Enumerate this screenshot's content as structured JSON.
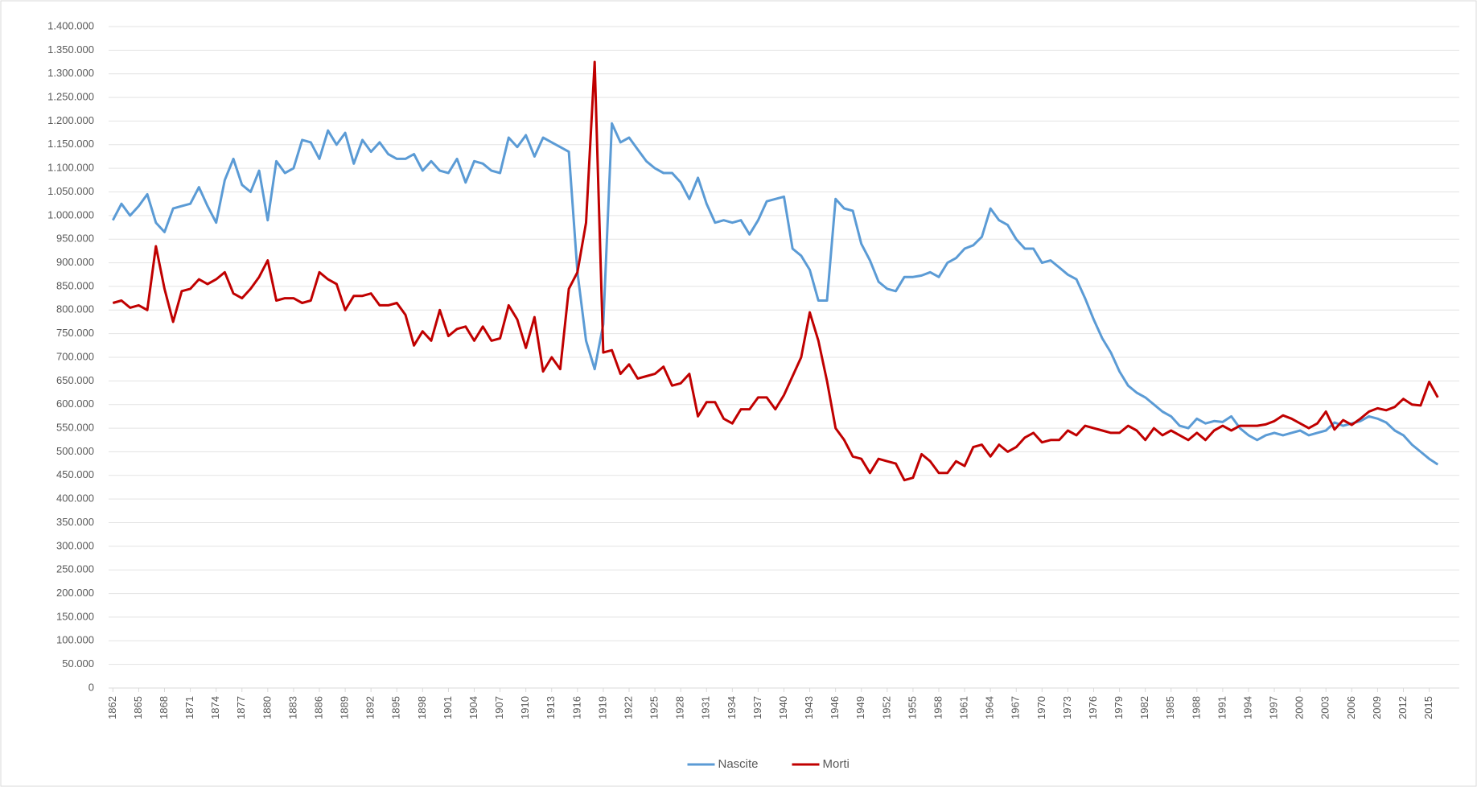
{
  "chart_data": {
    "type": "line",
    "x": [
      1862,
      1863,
      1864,
      1865,
      1866,
      1867,
      1868,
      1869,
      1870,
      1871,
      1872,
      1873,
      1874,
      1875,
      1876,
      1877,
      1878,
      1879,
      1880,
      1881,
      1882,
      1883,
      1884,
      1885,
      1886,
      1887,
      1888,
      1889,
      1890,
      1891,
      1892,
      1893,
      1894,
      1895,
      1896,
      1897,
      1898,
      1899,
      1900,
      1901,
      1902,
      1903,
      1904,
      1905,
      1906,
      1907,
      1908,
      1909,
      1910,
      1911,
      1912,
      1913,
      1914,
      1915,
      1916,
      1917,
      1918,
      1919,
      1920,
      1921,
      1922,
      1923,
      1924,
      1925,
      1926,
      1927,
      1928,
      1929,
      1930,
      1931,
      1932,
      1933,
      1934,
      1935,
      1936,
      1937,
      1938,
      1939,
      1940,
      1941,
      1942,
      1943,
      1944,
      1945,
      1946,
      1947,
      1948,
      1949,
      1950,
      1951,
      1952,
      1953,
      1954,
      1955,
      1956,
      1957,
      1958,
      1959,
      1960,
      1961,
      1962,
      1963,
      1964,
      1965,
      1966,
      1967,
      1968,
      1969,
      1970,
      1971,
      1972,
      1973,
      1974,
      1975,
      1976,
      1977,
      1978,
      1979,
      1980,
      1981,
      1982,
      1983,
      1984,
      1985,
      1986,
      1987,
      1988,
      1989,
      1990,
      1991,
      1992,
      1993,
      1994,
      1995,
      1996,
      1997,
      1998,
      1999,
      2000,
      2001,
      2002,
      2003,
      2004,
      2005,
      2006,
      2007,
      2008,
      2009,
      2010,
      2011,
      2012,
      2013,
      2014,
      2015,
      2016
    ],
    "series": [
      {
        "name": "Nascite",
        "color": "#5b9bd5",
        "values": [
          990000,
          1025000,
          1000000,
          1020000,
          1045000,
          985000,
          965000,
          1015000,
          1020000,
          1025000,
          1060000,
          1020000,
          985000,
          1075000,
          1120000,
          1065000,
          1050000,
          1095000,
          990000,
          1115000,
          1090000,
          1100000,
          1160000,
          1155000,
          1120000,
          1180000,
          1150000,
          1175000,
          1110000,
          1160000,
          1135000,
          1155000,
          1130000,
          1120000,
          1120000,
          1130000,
          1095000,
          1115000,
          1095000,
          1090000,
          1120000,
          1070000,
          1115000,
          1110000,
          1095000,
          1090000,
          1165000,
          1145000,
          1170000,
          1125000,
          1165000,
          1155000,
          1145000,
          1135000,
          880000,
          735000,
          675000,
          770000,
          1195000,
          1155000,
          1165000,
          1140000,
          1115000,
          1100000,
          1090000,
          1090000,
          1070000,
          1035000,
          1080000,
          1025000,
          985000,
          990000,
          985000,
          990000,
          960000,
          990000,
          1030000,
          1035000,
          1040000,
          930000,
          915000,
          885000,
          820000,
          820000,
          1035000,
          1015000,
          1010000,
          940000,
          905000,
          860000,
          845000,
          840000,
          870000,
          870000,
          873000,
          880000,
          870000,
          900000,
          910000,
          930000,
          937000,
          955000,
          1015000,
          990000,
          980000,
          950000,
          930000,
          930000,
          900000,
          905000,
          890000,
          875000,
          865000,
          825000,
          780000,
          740000,
          710000,
          670000,
          640000,
          625000,
          615000,
          600000,
          585000,
          575000,
          555000,
          550000,
          570000,
          560000,
          565000,
          563000,
          575000,
          550000,
          535000,
          525000,
          535000,
          540000,
          535000,
          540000,
          545000,
          535000,
          540000,
          545000,
          562000,
          555000,
          560000,
          565000,
          575000,
          570000,
          562000,
          545000,
          535000,
          515000,
          500000,
          485000,
          473000
        ]
      },
      {
        "name": "Morti",
        "color": "#c00000",
        "values": [
          815000,
          820000,
          805000,
          810000,
          800000,
          935000,
          845000,
          775000,
          840000,
          845000,
          865000,
          855000,
          865000,
          880000,
          835000,
          825000,
          845000,
          870000,
          905000,
          820000,
          825000,
          825000,
          815000,
          820000,
          880000,
          865000,
          855000,
          800000,
          830000,
          830000,
          835000,
          810000,
          810000,
          815000,
          790000,
          725000,
          755000,
          735000,
          800000,
          745000,
          760000,
          765000,
          735000,
          765000,
          735000,
          740000,
          810000,
          780000,
          720000,
          785000,
          670000,
          700000,
          675000,
          845000,
          880000,
          985000,
          1325000,
          710000,
          715000,
          665000,
          685000,
          655000,
          660000,
          665000,
          680000,
          640000,
          645000,
          665000,
          575000,
          605000,
          605000,
          570000,
          560000,
          590000,
          590000,
          615000,
          615000,
          590000,
          620000,
          660000,
          700000,
          795000,
          735000,
          650000,
          550000,
          525000,
          490000,
          485000,
          455000,
          485000,
          480000,
          475000,
          440000,
          445000,
          495000,
          480000,
          455000,
          455000,
          480000,
          470000,
          510000,
          515000,
          490000,
          515000,
          500000,
          510000,
          530000,
          540000,
          520000,
          525000,
          525000,
          545000,
          535000,
          555000,
          550000,
          545000,
          540000,
          540000,
          555000,
          545000,
          525000,
          550000,
          535000,
          545000,
          535000,
          525000,
          540000,
          525000,
          545000,
          555000,
          545000,
          555000,
          555000,
          555000,
          558000,
          565000,
          577000,
          570000,
          560000,
          550000,
          560000,
          585000,
          547000,
          567000,
          557000,
          570000,
          585000,
          592000,
          588000,
          595000,
          612000,
          600000,
          598000,
          648000,
          615000
        ]
      }
    ],
    "xlim": [
      1861.5,
      2018.5
    ],
    "xticks": [
      1862,
      1865,
      1868,
      1871,
      1874,
      1877,
      1880,
      1883,
      1886,
      1889,
      1892,
      1895,
      1898,
      1901,
      1904,
      1907,
      1910,
      1913,
      1916,
      1919,
      1922,
      1925,
      1928,
      1931,
      1934,
      1937,
      1940,
      1943,
      1946,
      1949,
      1952,
      1955,
      1958,
      1961,
      1964,
      1967,
      1970,
      1973,
      1976,
      1979,
      1982,
      1985,
      1988,
      1991,
      1994,
      1997,
      2000,
      2003,
      2006,
      2009,
      2012,
      2015
    ],
    "ylim": [
      0,
      1400000
    ],
    "yticks": [
      0,
      {
        "value": 50000,
        "label": "50.000"
      },
      {
        "value": 100000,
        "label": "100.000"
      },
      {
        "value": 150000,
        "label": "150.000"
      },
      {
        "value": 200000,
        "label": "200.000"
      },
      {
        "value": 250000,
        "label": "250.000"
      },
      {
        "value": 300000,
        "label": "300.000"
      },
      {
        "value": 350000,
        "label": "350.000"
      },
      {
        "value": 400000,
        "label": "400.000"
      },
      {
        "value": 450000,
        "label": "450.000"
      },
      {
        "value": 500000,
        "label": "500.000"
      },
      {
        "value": 550000,
        "label": "550.000"
      },
      {
        "value": 600000,
        "label": "600.000"
      },
      {
        "value": 650000,
        "label": "650.000"
      },
      {
        "value": 700000,
        "label": "700.000"
      },
      {
        "value": 750000,
        "label": "750.000"
      },
      {
        "value": 800000,
        "label": "800.000"
      },
      {
        "value": 850000,
        "label": "850.000"
      },
      {
        "value": 900000,
        "label": "900.000"
      },
      {
        "value": 950000,
        "label": "950.000"
      },
      {
        "value": 1000000,
        "label": "1.000.000"
      },
      {
        "value": 1050000,
        "label": "1.050.000"
      },
      {
        "value": 1100000,
        "label": "1.100.000"
      },
      {
        "value": 1150000,
        "label": "1.150.000"
      },
      {
        "value": 1200000,
        "label": "1.200.000"
      },
      {
        "value": 1250000,
        "label": "1.250.000"
      },
      {
        "value": 1300000,
        "label": "1.300.000"
      },
      {
        "value": 1350000,
        "label": "1.350.000"
      },
      {
        "value": 1400000,
        "label": "1.400.000"
      }
    ],
    "grid": true,
    "legend": "bottom"
  }
}
